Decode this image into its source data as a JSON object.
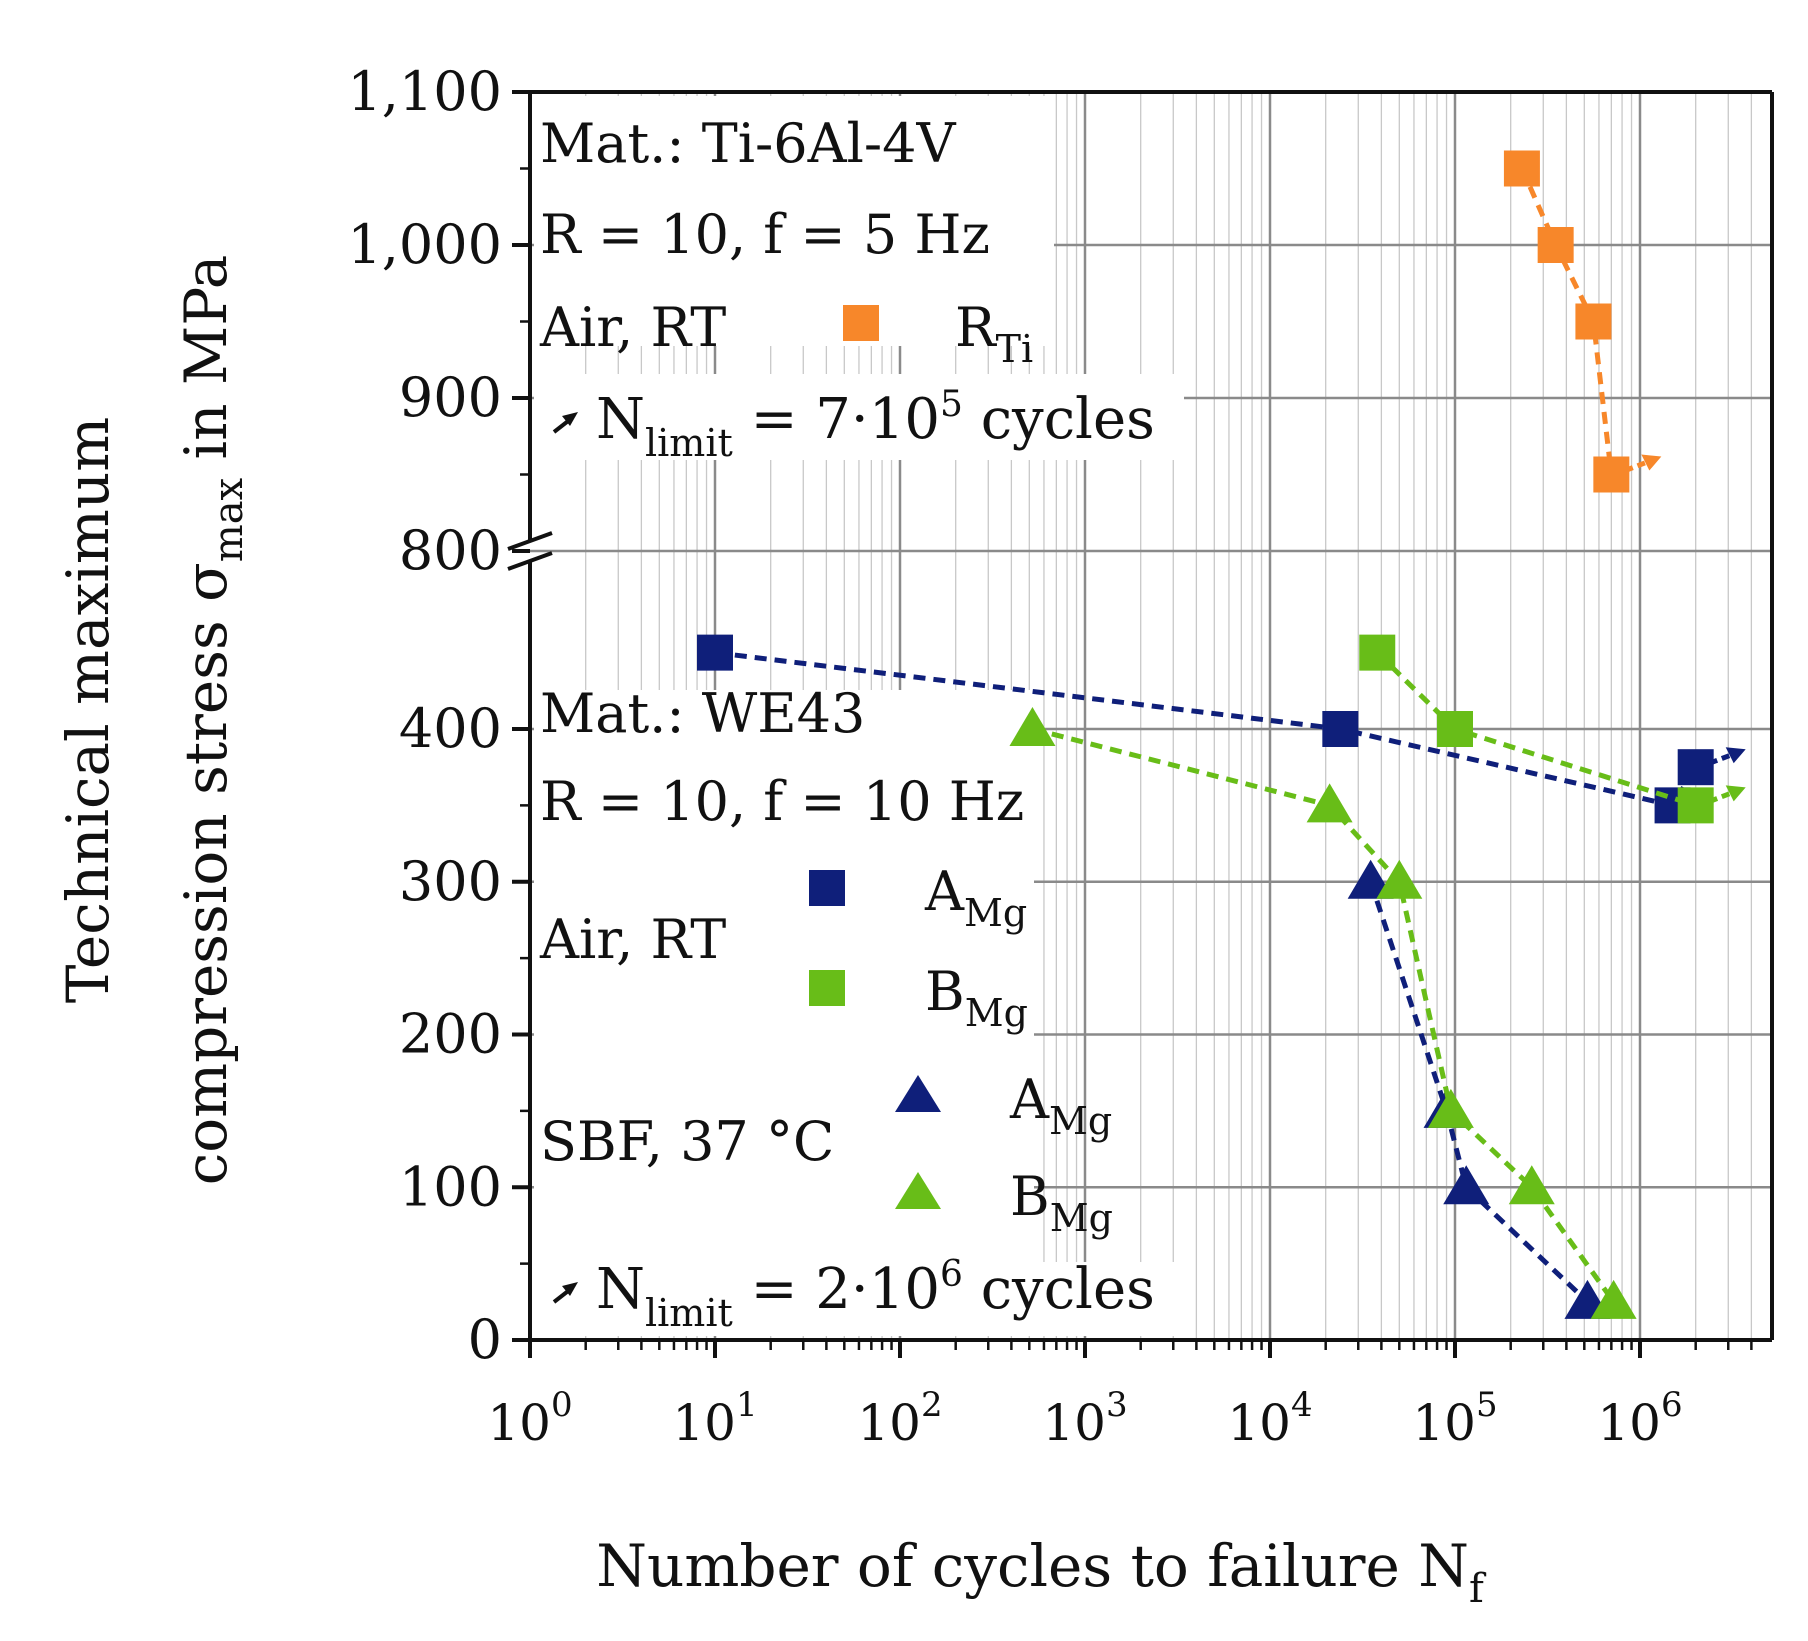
{
  "colors": {
    "R_Ti": "#f7872a",
    "A_Mg": "#0f1f7a",
    "B_Mg": "#68bd18",
    "grid": "#9a9a9a",
    "axis": "#111111"
  },
  "chart_data": {
    "type": "scatter",
    "x_scale": "log",
    "xlim": [
      1,
      4000000
    ],
    "y_break": {
      "lower_range": [
        0,
        450
      ],
      "upper_range": [
        800,
        1100
      ]
    },
    "xlabel": {
      "main": "Number of cycles to failure N",
      "sub": "f"
    },
    "ylabel": {
      "line1": "Technical maximum",
      "line2_main": "compression stress σ",
      "line2_sub": "max",
      "line2_end": " in MPa"
    },
    "x_ticks": [
      {
        "value": 1,
        "base": "10",
        "exp": "0"
      },
      {
        "value": 10,
        "base": "10",
        "exp": "1"
      },
      {
        "value": 100,
        "base": "10",
        "exp": "2"
      },
      {
        "value": 1000,
        "base": "10",
        "exp": "3"
      },
      {
        "value": 10000,
        "base": "10",
        "exp": "4"
      },
      {
        "value": 100000,
        "base": "10",
        "exp": "5"
      },
      {
        "value": 1000000,
        "base": "10",
        "exp": "6"
      }
    ],
    "y_ticks": [
      {
        "value": 0,
        "label": "0"
      },
      {
        "value": 100,
        "label": "100"
      },
      {
        "value": 200,
        "label": "200"
      },
      {
        "value": 300,
        "label": "300"
      },
      {
        "value": 400,
        "label": "400"
      },
      {
        "value": 800,
        "label": "800"
      },
      {
        "value": 900,
        "label": "900"
      },
      {
        "value": 1000,
        "label": "1,000"
      },
      {
        "value": 1100,
        "label": "1,100"
      }
    ],
    "series": [
      {
        "name": "R_Ti",
        "label_main": "R",
        "label_sub": "Ti",
        "marker": "square",
        "color_key": "R_Ti",
        "runout": true,
        "points": [
          {
            "x": 230000,
            "y": 1050
          },
          {
            "x": 350000,
            "y": 1000
          },
          {
            "x": 560000,
            "y": 950
          },
          {
            "x": 700000,
            "y": 850
          }
        ]
      },
      {
        "name": "A_Mg (Air, RT)",
        "label_main": "A",
        "label_sub": "Mg",
        "marker": "square",
        "color_key": "A_Mg",
        "runout": true,
        "points": [
          {
            "x": 10,
            "y": 450
          },
          {
            "x": 24000,
            "y": 400
          },
          {
            "x": 1500000,
            "y": 350
          },
          {
            "x": 2000000,
            "y": 375
          }
        ]
      },
      {
        "name": "B_Mg (Air, RT)",
        "label_main": "B",
        "label_sub": "Mg",
        "marker": "square",
        "color_key": "B_Mg",
        "runout": true,
        "points": [
          {
            "x": 38000,
            "y": 450
          },
          {
            "x": 100000,
            "y": 400
          },
          {
            "x": 2000000,
            "y": 350
          }
        ]
      },
      {
        "name": "A_Mg (SBF, 37 °C)",
        "label_main": "A",
        "label_sub": "Mg",
        "marker": "triangle",
        "color_key": "A_Mg",
        "runout": false,
        "points": [
          {
            "x": 35000,
            "y": 300
          },
          {
            "x": 90000,
            "y": 150
          },
          {
            "x": 115000,
            "y": 100
          },
          {
            "x": 520000,
            "y": 25
          }
        ]
      },
      {
        "name": "B_Mg (SBF, 37 °C)",
        "label_main": "B",
        "label_sub": "Mg",
        "marker": "triangle",
        "color_key": "B_Mg",
        "runout": false,
        "points": [
          {
            "x": 520,
            "y": 400
          },
          {
            "x": 21000,
            "y": 350
          },
          {
            "x": 50000,
            "y": 300
          },
          {
            "x": 95000,
            "y": 150
          },
          {
            "x": 260000,
            "y": 100
          },
          {
            "x": 720000,
            "y": 25
          }
        ]
      }
    ],
    "annotations": {
      "ti_material": "Mat.: Ti-6Al-4V",
      "ti_params": "R = 10, f = 5 Hz",
      "ti_env": "Air, RT",
      "ti_limit": {
        "main": "N",
        "sub": "limit",
        "text": " = 7·10",
        "exp": "5",
        "end": " cycles"
      },
      "mg_material": "Mat.: WE43",
      "mg_params": "R = 10, f = 10 Hz",
      "mg_env_air": "Air, RT",
      "mg_env_sbf": "SBF, 37 °C",
      "mg_limit": {
        "main": "N",
        "sub": "limit",
        "text": " = 2·10",
        "exp": "6",
        "end": " cycles"
      }
    }
  }
}
